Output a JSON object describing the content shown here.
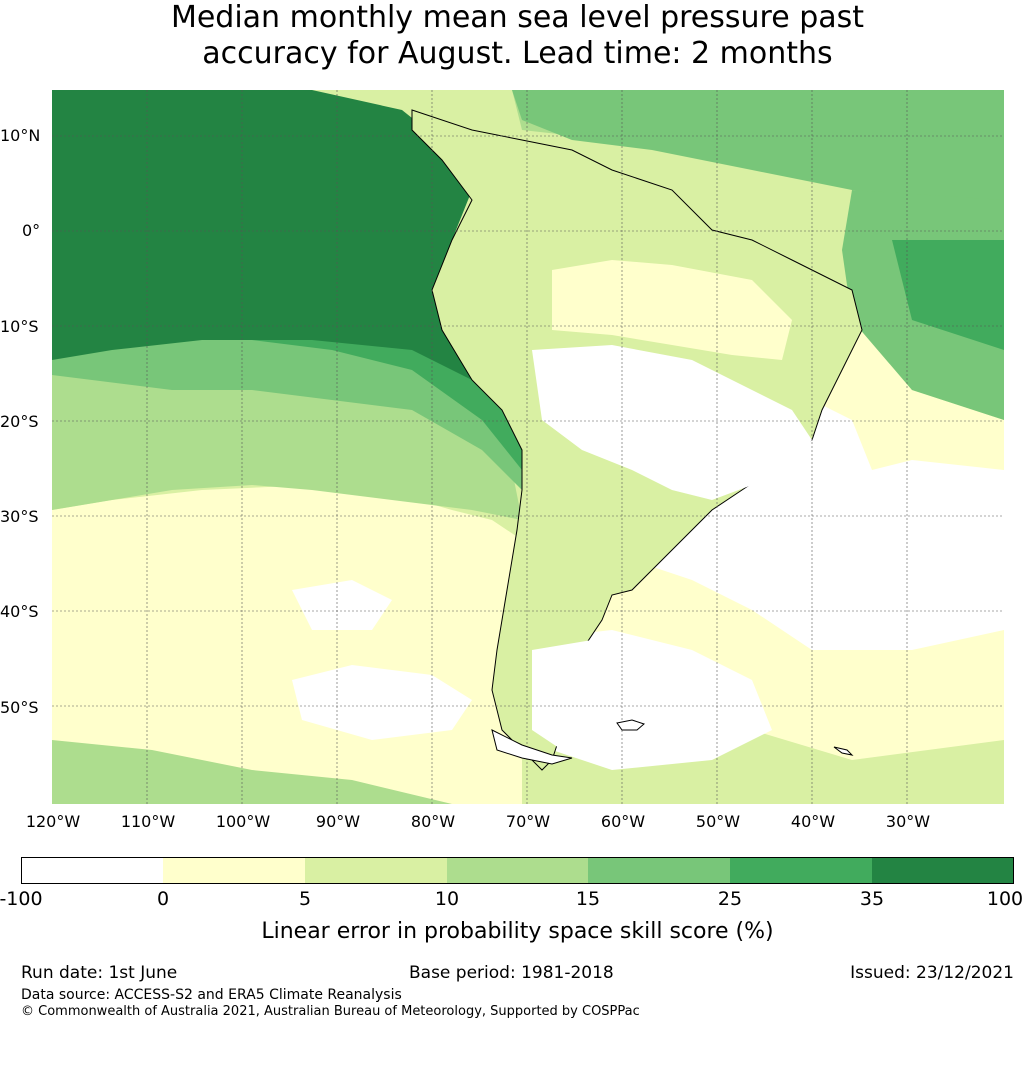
{
  "title_line1": "Median monthly mean sea level pressure past",
  "title_line2": "accuracy for August. Lead time: 2 months",
  "lat_labels": [
    "10°N",
    "0°",
    "10°S",
    "20°S",
    "30°S",
    "40°S",
    "50°S"
  ],
  "lon_labels": [
    "120°W",
    "110°W",
    "100°W",
    "90°W",
    "80°W",
    "70°W",
    "60°W",
    "50°W",
    "40°W",
    "30°W"
  ],
  "colors": {
    "c_neg": "#ffffff",
    "c0_5": "#ffffcc",
    "c5_10": "#d9f0a3",
    "c10_15": "#addd8e",
    "c15_25": "#78c679",
    "c25_35": "#41ab5d",
    "c35_100": "#238443"
  },
  "colorbar_ticks": [
    "-100",
    "0",
    "5",
    "10",
    "15",
    "25",
    "35",
    "100"
  ],
  "colorbar_label": "Linear error in probability space skill score (%)",
  "run_date": "Run date: 1st June",
  "base_period": "Base period: 1981-2018",
  "issued": "Issued: 23/12/2021",
  "data_source": "Data source: ACCESS-S2 and ERA5 Climate Reanalysis",
  "copyright": "© Commonwealth of Australia 2021, Australian Bureau of Meteorology, Supported by COSPPac"
}
